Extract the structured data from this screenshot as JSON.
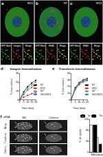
{
  "panels": [
    {
      "label": "a",
      "title": "W13",
      "insets": [
        "GFP-Mem",
        "Integrin",
        "Merge"
      ]
    },
    {
      "label": "b",
      "title": "NT",
      "insets": [
        "GFP-Mem",
        "EEA1",
        "Merge"
      ]
    },
    {
      "label": "c",
      "title": "W13",
      "insets": [
        "GFP-Mem",
        "EEA1",
        "Merge"
      ]
    },
    {
      "label": "f",
      "header": "siRNA",
      "columns": [
        "NS",
        "Clathrin"
      ],
      "rows": [
        "Merge",
        "Transferrin",
        "Clathrin"
      ]
    }
  ],
  "chart_data": [
    {
      "panel_label": "d",
      "type": "line",
      "title": "Integrin Internalization",
      "x_label": "Time (min)",
      "y_label": "% Internalized",
      "x": [
        0,
        5,
        10,
        15,
        20
      ],
      "xlim": [
        0,
        20
      ],
      "xticks": [
        0,
        5,
        10,
        15,
        20
      ],
      "ylim": [
        0,
        30
      ],
      "yticks": [
        0,
        10,
        20,
        30
      ],
      "grid": false,
      "legend": "right",
      "series": [
        {
          "name": "NT",
          "color": "#000000",
          "values": [
            0,
            9,
            15,
            19,
            22
          ]
        },
        {
          "name": "W13",
          "color": "#d62728",
          "values": [
            0,
            3,
            5,
            7,
            8
          ]
        },
        {
          "name": "W7",
          "color": "#7f7f7f",
          "values": [
            0,
            8,
            13,
            17,
            20
          ]
        },
        {
          "name": "GDO/W13",
          "color": "#1f77b4",
          "values": [
            0,
            6,
            11,
            14,
            17
          ]
        }
      ]
    },
    {
      "panel_label": "e",
      "type": "line",
      "title": "Transferrin Internalization",
      "x_label": "Time (min)",
      "y_label": "% Internalized",
      "x": [
        0,
        5,
        10,
        15,
        20
      ],
      "xlim": [
        0,
        20
      ],
      "xticks": [
        0,
        5,
        10,
        15,
        20
      ],
      "ylim": [
        0,
        40
      ],
      "yticks": [
        0,
        10,
        20,
        30,
        40
      ],
      "grid": false,
      "legend": "right",
      "series": [
        {
          "name": "NT",
          "color": "#000000",
          "values": [
            0,
            18,
            26,
            30,
            32
          ]
        },
        {
          "name": "W13",
          "color": "#d62728",
          "values": [
            0,
            16,
            24,
            28,
            30
          ]
        },
        {
          "name": "W7",
          "color": "#7f7f7f",
          "values": [
            0,
            17,
            25,
            29,
            31
          ]
        },
        {
          "name": "GDO/W13",
          "color": "#1f77b4",
          "values": [
            0,
            15,
            23,
            27,
            29
          ]
        }
      ]
    },
    {
      "type": "bar",
      "y_label": "% of uptake",
      "categories": [
        "NS",
        "Clathrin"
      ],
      "ylim": [
        0,
        120
      ],
      "yticks": [
        0,
        40,
        80,
        120
      ],
      "grid": false,
      "legend": "top-right",
      "series": [
        {
          "name": "Int",
          "color": "#ffffff",
          "values": [
            100,
            55
          ]
        },
        {
          "name": "Tfn",
          "color": "#000000",
          "values": [
            100,
            30
          ]
        }
      ]
    }
  ]
}
